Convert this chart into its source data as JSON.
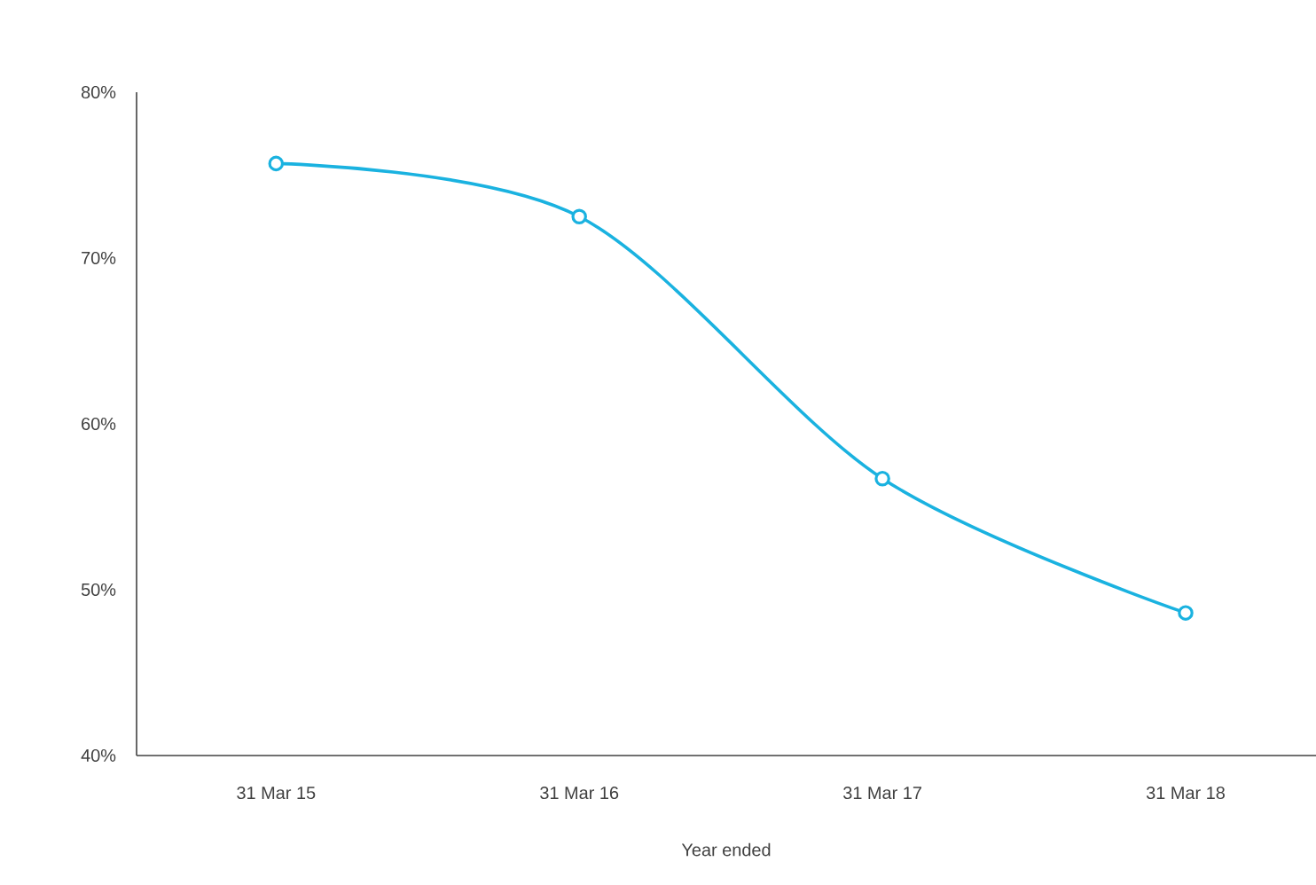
{
  "chart_data": {
    "type": "line",
    "xlabel": "Year ended",
    "categories": [
      "31 Mar 15",
      "31 Mar 16",
      "31 Mar 17",
      "31 Mar 18"
    ],
    "series": [
      {
        "color": "#1ab2e0",
        "values": [
          75.7,
          72.5,
          56.7,
          48.6
        ]
      }
    ],
    "ylim": [
      40,
      80
    ],
    "yticks": [
      {
        "value": 40,
        "label": "40%"
      },
      {
        "value": 50,
        "label": "50%"
      },
      {
        "value": 60,
        "label": "60%"
      },
      {
        "value": 70,
        "label": "70%"
      },
      {
        "value": 80,
        "label": "80%"
      }
    ],
    "grid": false,
    "legend": false,
    "marker": "circle",
    "line_style": "solid"
  }
}
